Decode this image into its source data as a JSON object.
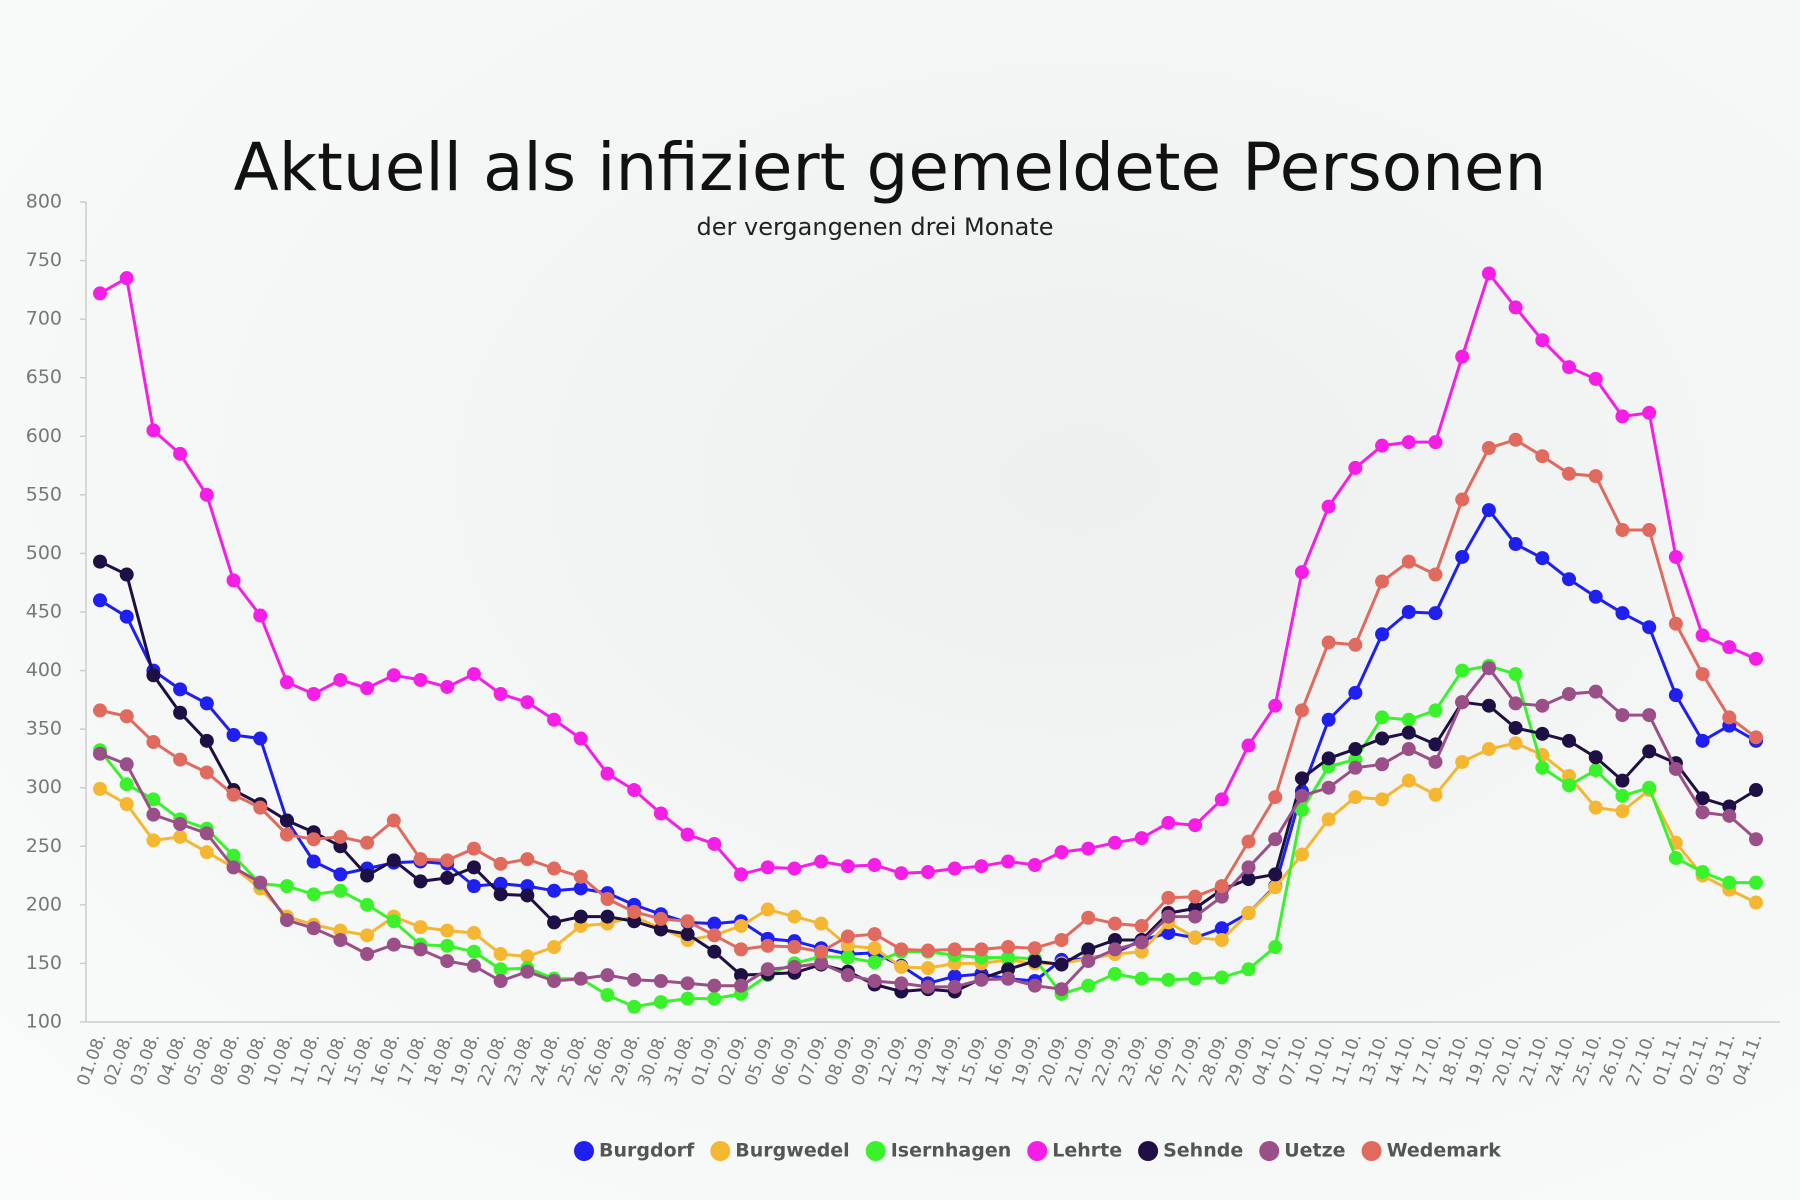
{
  "chart_data": {
    "type": "line",
    "title": "Aktuell als infiziert gemeldete Personen",
    "subtitle": "der vergangenen drei Monate",
    "categories": [
      "01.08.",
      "02.08.",
      "03.08.",
      "04.08.",
      "05.08.",
      "08.08.",
      "09.08.",
      "10.08.",
      "11.08.",
      "12.08.",
      "15.08.",
      "16.08.",
      "17.08.",
      "18.08.",
      "19.08.",
      "22.08.",
      "23.08.",
      "24.08.",
      "25.08.",
      "26.08.",
      "29.08.",
      "30.08.",
      "31.08.",
      "01.09.",
      "02.09.",
      "05.09.",
      "06.09.",
      "07.09.",
      "08.09.",
      "09.09.",
      "12.09.",
      "13.09.",
      "14.09.",
      "15.09.",
      "16.09.",
      "19.09.",
      "20.09.",
      "21.09.",
      "22.09.",
      "23.09.",
      "26.09.",
      "27.09.",
      "28.09.",
      "29.09.",
      "04.10.",
      "07.10.",
      "10.10.",
      "11.10.",
      "13.10.",
      "14.10.",
      "17.10.",
      "18.10.",
      "19.10.",
      "20.10.",
      "21.10.",
      "24.10.",
      "25.10.",
      "26.10.",
      "27.10.",
      "01.11.",
      "02.11.",
      "03.11.",
      "04.11."
    ],
    "series": [
      {
        "name": "Burgdorf",
        "color": "#1f1ff0",
        "values": [
          460,
          446,
          400,
          384,
          372,
          345,
          342,
          272,
          237,
          226,
          231,
          236,
          237,
          235,
          216,
          218,
          216,
          212,
          214,
          210,
          200,
          192,
          185,
          184,
          186,
          171,
          169,
          163,
          158,
          159,
          148,
          133,
          139,
          141,
          137,
          135,
          153,
          154,
          159,
          170,
          176,
          172,
          180,
          193,
          216,
          297,
          358,
          381,
          431,
          450,
          449,
          497,
          537,
          508,
          496,
          478,
          463,
          449,
          437,
          379,
          340,
          353,
          340
        ]
      },
      {
        "name": "Burgwedel",
        "color": "#f5b731",
        "values": [
          299,
          286,
          255,
          258,
          245,
          232,
          214,
          190,
          183,
          178,
          174,
          190,
          181,
          178,
          176,
          158,
          156,
          164,
          182,
          184,
          190,
          180,
          170,
          174,
          182,
          196,
          190,
          184,
          165,
          163,
          147,
          146,
          150,
          150,
          153,
          150,
          150,
          154,
          158,
          160,
          185,
          172,
          170,
          193,
          215,
          243,
          273,
          292,
          290,
          306,
          294,
          322,
          333,
          338,
          328,
          310,
          283,
          280,
          298,
          253,
          225,
          213,
          202
        ]
      },
      {
        "name": "Isernhagen",
        "color": "#39f22b",
        "values": [
          332,
          303,
          290,
          273,
          265,
          242,
          218,
          216,
          209,
          212,
          200,
          186,
          166,
          165,
          160,
          145,
          146,
          137,
          137,
          123,
          113,
          117,
          120,
          120,
          124,
          140,
          150,
          156,
          155,
          151,
          160,
          160,
          157,
          155,
          155,
          154,
          124,
          131,
          141,
          137,
          136,
          137,
          138,
          145,
          164,
          281,
          318,
          324,
          360,
          358,
          366,
          400,
          404,
          397,
          317,
          302,
          315,
          293,
          300,
          240,
          228,
          219,
          219
        ]
      },
      {
        "name": "Lehrte",
        "color": "#f51ee6",
        "values": [
          722,
          735,
          605,
          585,
          550,
          477,
          447,
          390,
          380,
          392,
          385,
          396,
          392,
          386,
          397,
          380,
          373,
          358,
          342,
          312,
          298,
          278,
          260,
          252,
          226,
          232,
          231,
          237,
          233,
          234,
          227,
          228,
          231,
          233,
          237,
          234,
          245,
          248,
          253,
          257,
          270,
          268,
          290,
          336,
          370,
          484,
          540,
          573,
          592,
          595,
          595,
          668,
          739,
          710,
          682,
          659,
          649,
          617,
          620,
          497,
          430,
          420,
          410
        ]
      },
      {
        "name": "Sehnde",
        "color": "#1e1044",
        "values": [
          493,
          482,
          396,
          364,
          340,
          298,
          286,
          272,
          262,
          250,
          225,
          238,
          220,
          223,
          232,
          209,
          208,
          185,
          190,
          190,
          186,
          179,
          175,
          160,
          140,
          141,
          142,
          149,
          143,
          132,
          126,
          128,
          126,
          137,
          145,
          152,
          149,
          162,
          170,
          170,
          193,
          197,
          213,
          222,
          226,
          308,
          325,
          333,
          342,
          347,
          337,
          373,
          370,
          351,
          346,
          340,
          326,
          306,
          331,
          321,
          291,
          284,
          298
        ]
      },
      {
        "name": "Uetze",
        "color": "#9b4f88",
        "values": [
          329,
          320,
          277,
          269,
          261,
          232,
          219,
          187,
          180,
          170,
          158,
          166,
          162,
          152,
          148,
          135,
          143,
          135,
          137,
          140,
          136,
          135,
          133,
          131,
          131,
          145,
          147,
          150,
          140,
          135,
          133,
          130,
          130,
          136,
          137,
          131,
          128,
          152,
          162,
          168,
          190,
          190,
          207,
          232,
          256,
          293,
          300,
          317,
          320,
          333,
          322,
          373,
          402,
          372,
          370,
          380,
          382,
          362,
          362,
          316,
          279,
          276,
          256
        ]
      },
      {
        "name": "Wedemark",
        "color": "#e06a5e",
        "values": [
          366,
          361,
          339,
          324,
          313,
          294,
          283,
          260,
          256,
          258,
          253,
          272,
          239,
          238,
          248,
          235,
          239,
          231,
          224,
          205,
          194,
          188,
          186,
          174,
          162,
          165,
          164,
          160,
          173,
          175,
          162,
          161,
          162,
          162,
          164,
          163,
          170,
          189,
          184,
          182,
          206,
          207,
          216,
          254,
          292,
          366,
          424,
          422,
          476,
          493,
          482,
          546,
          590,
          597,
          583,
          568,
          566,
          520,
          520,
          440,
          397,
          360,
          343
        ]
      }
    ],
    "ylim": [
      100,
      800
    ],
    "yticks": [
      100,
      150,
      200,
      250,
      300,
      350,
      400,
      450,
      500,
      550,
      600,
      650,
      700,
      750,
      800
    ]
  }
}
